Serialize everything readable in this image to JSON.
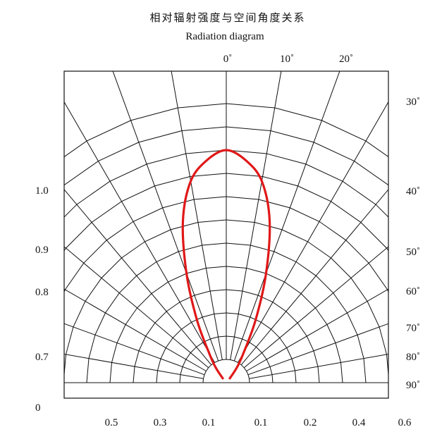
{
  "chart_data": {
    "type": "polar-radiation",
    "title": "相对辐射强度与空间角度关系",
    "subtitle": "Radiation diagram",
    "top_angle_labels": [
      "0˚",
      "10˚",
      "20˚"
    ],
    "right_angle_labels": [
      "30˚",
      "40˚",
      "50˚",
      "60˚",
      "70˚",
      "80˚",
      "90˚"
    ],
    "left_labels": [
      "1.0",
      "0.9",
      "0.8",
      "0.7",
      "0"
    ],
    "bottom_labels": [
      "0.5",
      "0.3",
      "0.1",
      "0.1",
      "0.2",
      "0.4",
      "0.6"
    ],
    "angle_step_deg": 10,
    "ring_count": 10,
    "grid": true,
    "curve_color": "#e01818",
    "series": [
      {
        "points": [
          {
            "angle": 0,
            "intensity": 1.0
          },
          {
            "angle": 5,
            "intensity": 0.96
          },
          {
            "angle": 10,
            "intensity": 0.88
          },
          {
            "angle": 15,
            "intensity": 0.72
          },
          {
            "angle": 20,
            "intensity": 0.5
          },
          {
            "angle": 25,
            "intensity": 0.3
          },
          {
            "angle": 30,
            "intensity": 0.15
          },
          {
            "angle": 35,
            "intensity": 0.08
          },
          {
            "angle": 40,
            "intensity": 0.02
          }
        ]
      }
    ]
  }
}
